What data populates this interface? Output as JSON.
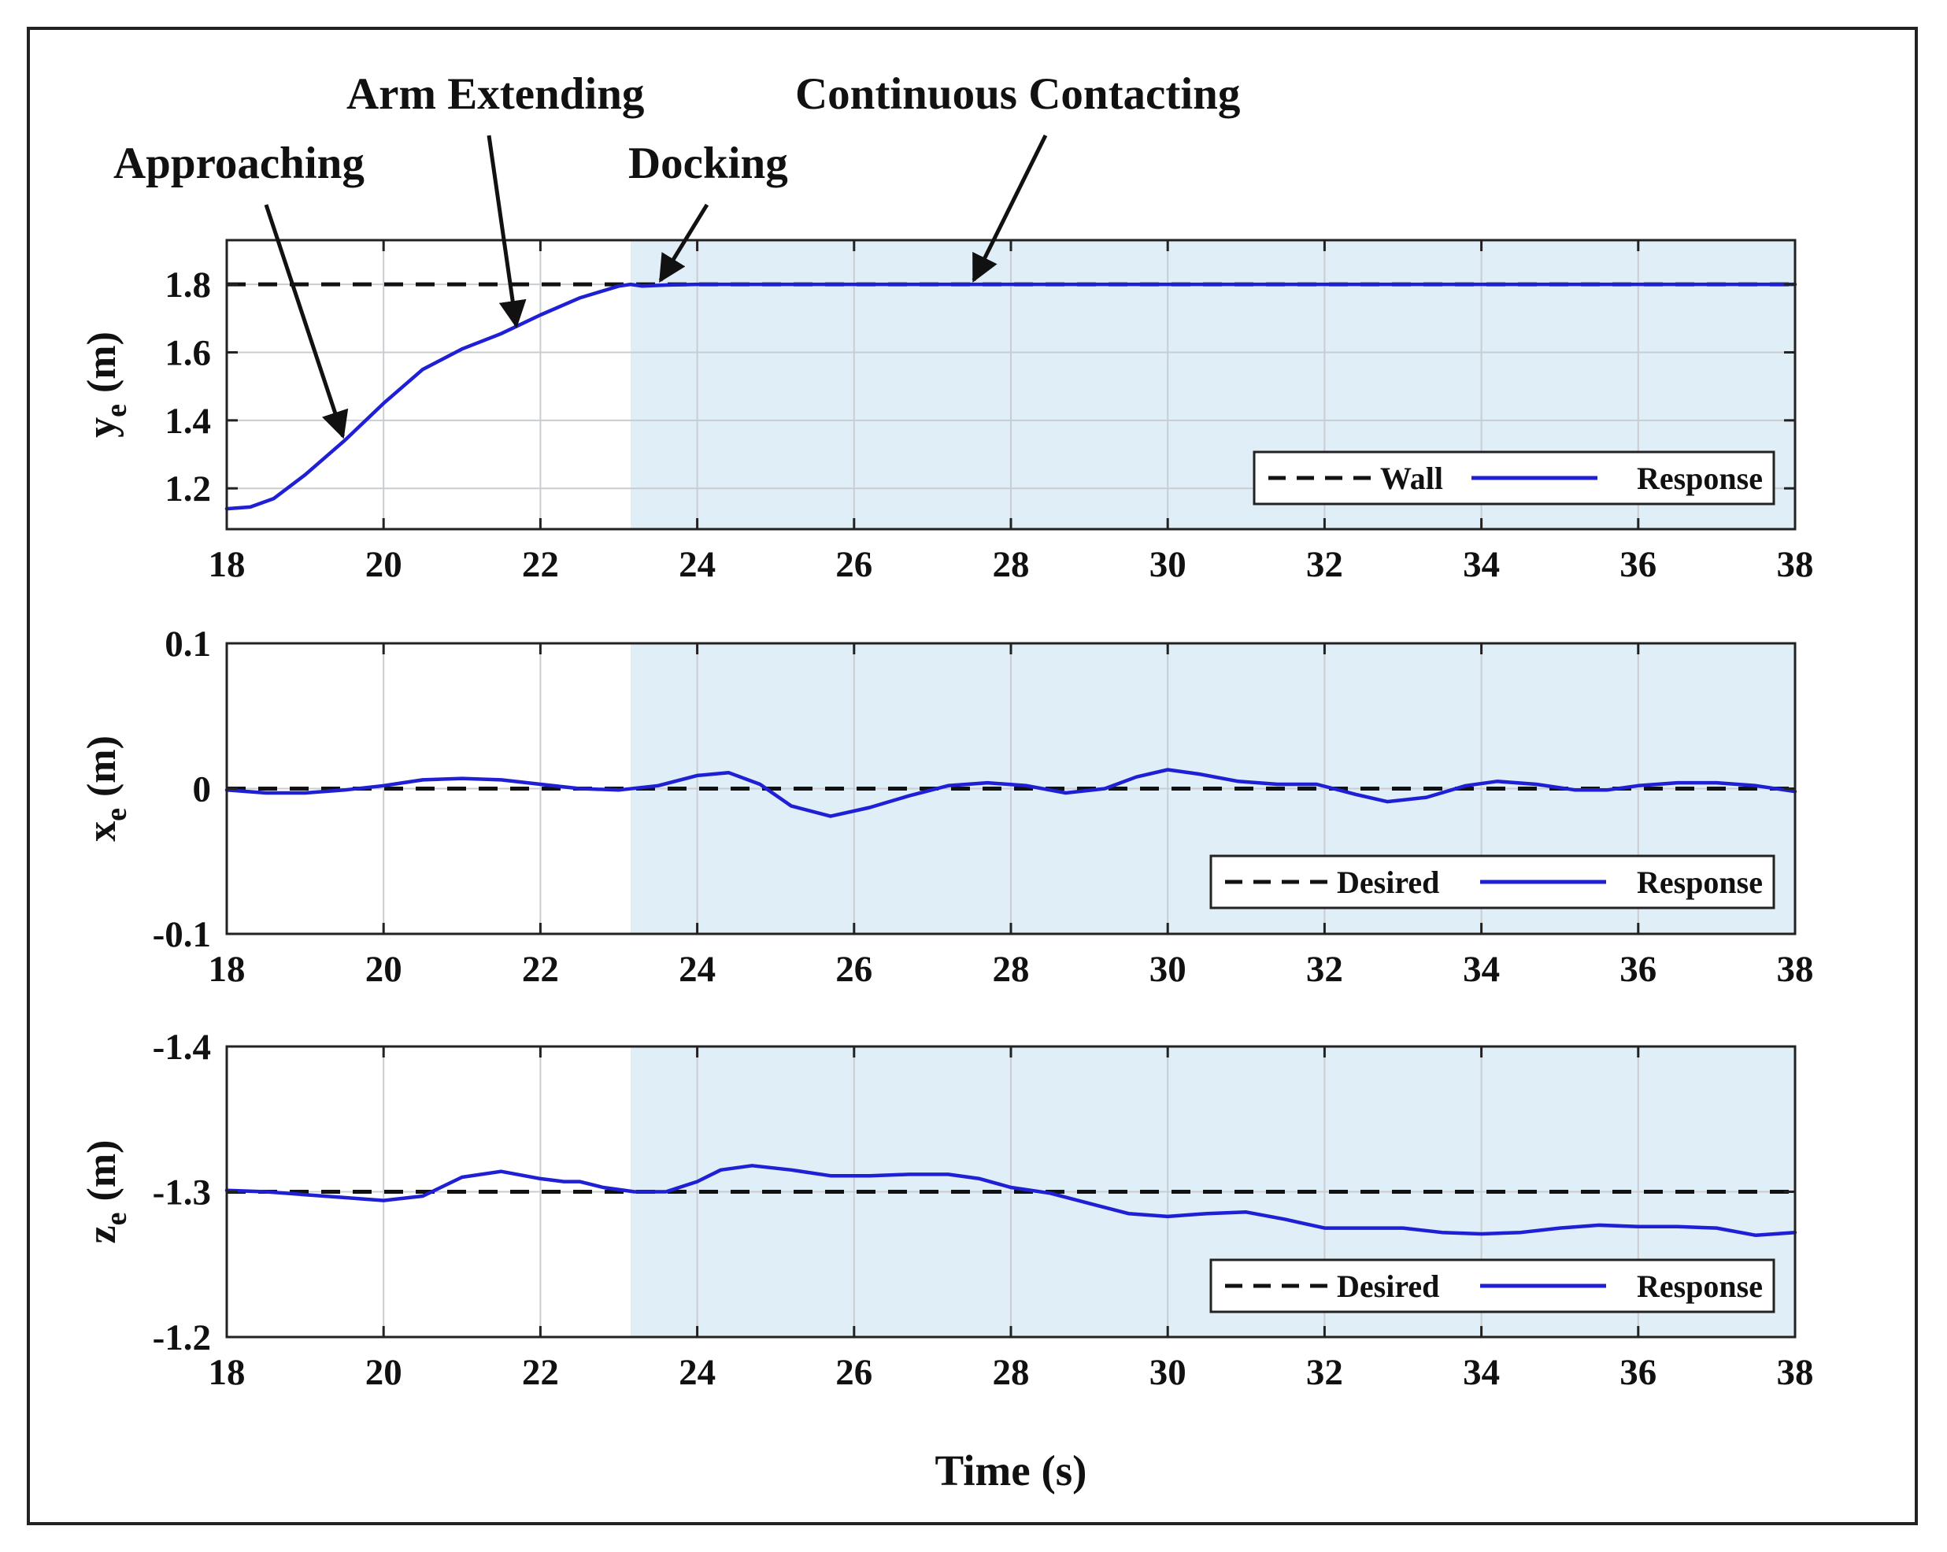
{
  "chart_data": [
    {
      "type": "line",
      "id": "ye",
      "ylabel_main": "y",
      "ylabel_sub": "e",
      "ylabel_unit": "(m)",
      "xlim": [
        18,
        38
      ],
      "ylim": [
        1.08,
        1.93
      ],
      "xticks": [
        18,
        20,
        22,
        24,
        26,
        28,
        30,
        32,
        34,
        36,
        38
      ],
      "yticks": [
        1.2,
        1.4,
        1.6,
        1.8
      ],
      "ytick_labels": [
        "1.2",
        "1.4",
        "1.6",
        "1.8"
      ],
      "y_reversed": false,
      "shaded_from": 23.15,
      "reference": {
        "name": "Wall",
        "value": 1.8
      },
      "series": [
        {
          "name": "Response",
          "x": [
            18,
            18.3,
            18.6,
            19.0,
            19.5,
            20.0,
            20.5,
            21.0,
            21.5,
            22.0,
            22.5,
            23.0,
            23.15,
            23.3,
            23.6,
            24,
            38
          ],
          "y": [
            1.14,
            1.145,
            1.17,
            1.24,
            1.34,
            1.45,
            1.55,
            1.61,
            1.655,
            1.71,
            1.76,
            1.795,
            1.8,
            1.795,
            1.798,
            1.8,
            1.8
          ]
        }
      ],
      "legend": [
        "Wall",
        "Response"
      ]
    },
    {
      "type": "line",
      "id": "xe",
      "ylabel_main": "x",
      "ylabel_sub": "e",
      "ylabel_unit": "(m)",
      "xlim": [
        18,
        38
      ],
      "ylim": [
        -0.1,
        0.1
      ],
      "xticks": [
        18,
        20,
        22,
        24,
        26,
        28,
        30,
        32,
        34,
        36,
        38
      ],
      "yticks": [
        -0.1,
        0,
        0.1
      ],
      "ytick_labels": [
        "-0.1",
        "0",
        "0.1"
      ],
      "y_reversed": false,
      "shaded_from": 23.15,
      "reference": {
        "name": "Desired",
        "value": 0
      },
      "series": [
        {
          "name": "Response",
          "x": [
            18,
            18.5,
            19,
            19.5,
            20,
            20.5,
            21,
            21.5,
            22,
            22.5,
            23,
            23.5,
            24,
            24.4,
            24.8,
            25.2,
            25.7,
            26.2,
            26.7,
            27.2,
            27.7,
            28.2,
            28.7,
            29.2,
            29.6,
            30,
            30.4,
            30.9,
            31.4,
            31.9,
            32.4,
            32.8,
            33.3,
            33.8,
            34.2,
            34.7,
            35.2,
            35.6,
            36,
            36.5,
            37,
            37.5,
            38
          ],
          "y": [
            -0.001,
            -0.003,
            -0.003,
            -0.001,
            0.002,
            0.006,
            0.007,
            0.006,
            0.003,
            0.0,
            -0.001,
            0.002,
            0.009,
            0.011,
            0.003,
            -0.012,
            -0.019,
            -0.013,
            -0.005,
            0.002,
            0.004,
            0.002,
            -0.003,
            0.0,
            0.008,
            0.013,
            0.01,
            0.005,
            0.003,
            0.003,
            -0.004,
            -0.009,
            -0.006,
            0.002,
            0.005,
            0.003,
            -0.001,
            -0.001,
            0.002,
            0.004,
            0.004,
            0.002,
            -0.002
          ]
        }
      ],
      "legend": [
        "Desired",
        "Response"
      ]
    },
    {
      "type": "line",
      "id": "ze",
      "ylabel_main": "z",
      "ylabel_sub": "e",
      "ylabel_unit": "(m)",
      "xlim": [
        18,
        38
      ],
      "ylim": [
        -1.4,
        -1.2
      ],
      "xticks": [
        18,
        20,
        22,
        24,
        26,
        28,
        30,
        32,
        34,
        36,
        38
      ],
      "yticks": [
        -1.4,
        -1.3,
        -1.2
      ],
      "ytick_labels": [
        "-1.4",
        "-1.3",
        "-1.2"
      ],
      "y_reversed": true,
      "shaded_from": 23.15,
      "reference": {
        "name": "Desired",
        "value": -1.3
      },
      "xlabel": "Time (s)",
      "series": [
        {
          "name": "Response",
          "x": [
            18,
            18.5,
            19,
            19.5,
            20,
            20.5,
            21,
            21.5,
            22,
            22.3,
            22.5,
            22.8,
            23.2,
            23.6,
            24,
            24.3,
            24.7,
            25.2,
            25.7,
            26.2,
            26.7,
            27.2,
            27.6,
            28,
            28.5,
            29,
            29.5,
            30,
            30.5,
            31,
            31.5,
            32,
            32.5,
            33,
            33.5,
            34,
            34.5,
            35,
            35.5,
            36,
            36.5,
            37,
            37.5,
            38
          ],
          "y": [
            -1.301,
            -1.3,
            -1.298,
            -1.296,
            -1.294,
            -1.297,
            -1.31,
            -1.314,
            -1.309,
            -1.307,
            -1.307,
            -1.303,
            -1.3,
            -1.3,
            -1.307,
            -1.315,
            -1.318,
            -1.315,
            -1.311,
            -1.311,
            -1.312,
            -1.312,
            -1.309,
            -1.303,
            -1.299,
            -1.292,
            -1.285,
            -1.283,
            -1.285,
            -1.286,
            -1.281,
            -1.275,
            -1.275,
            -1.275,
            -1.272,
            -1.271,
            -1.272,
            -1.275,
            -1.277,
            -1.276,
            -1.276,
            -1.275,
            -1.27,
            -1.272
          ]
        }
      ],
      "legend": [
        "Desired",
        "Response"
      ]
    }
  ],
  "annotations": [
    {
      "id": "approaching",
      "text": "Approaching",
      "x": 19.5,
      "y": 1.34
    },
    {
      "id": "arm-extending",
      "text": "Arm Extending",
      "x": 21.7,
      "y": 1.665
    },
    {
      "id": "docking",
      "text": "Docking",
      "x": 23.5,
      "y": 1.8
    },
    {
      "id": "continuous-contacting",
      "text": "Continuous Contacting",
      "x": 27.5,
      "y": 1.8
    }
  ],
  "colors": {
    "response": "#1f1fd6",
    "reference": "#111111",
    "shade": "#dfeef7",
    "grid": "#c9cdd2",
    "axis": "#222222"
  }
}
